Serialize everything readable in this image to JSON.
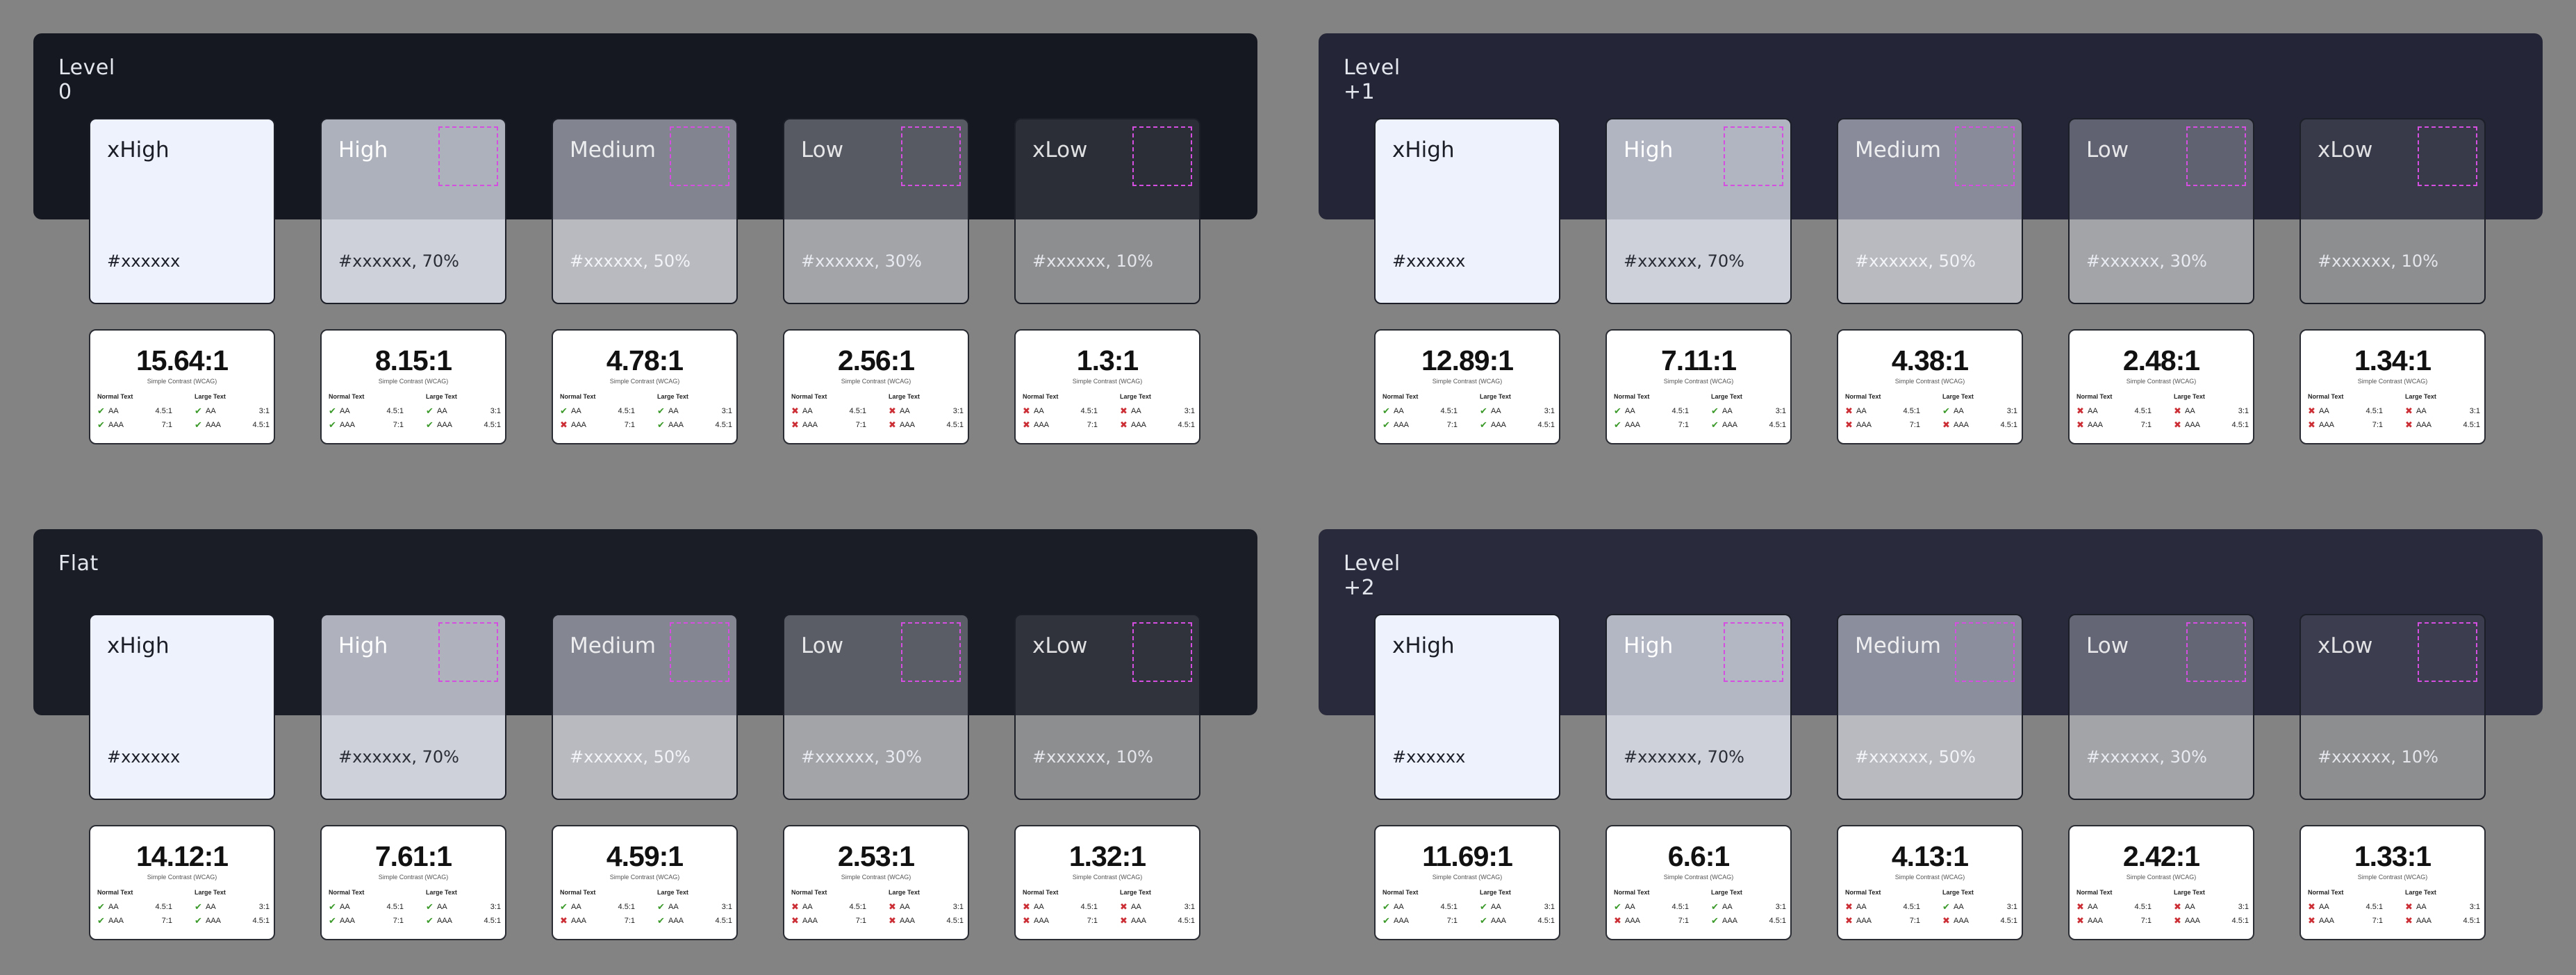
{
  "groups": [
    {
      "title": "Level 0",
      "band_color": "#161821",
      "swatches": [
        {
          "label": "xHigh",
          "value": "#xxxxxx"
        },
        {
          "label": "High",
          "value": "#xxxxxx, 70%"
        },
        {
          "label": "Medium",
          "value": "#xxxxxx, 50%"
        },
        {
          "label": "Low",
          "value": "#xxxxxx, 30%"
        },
        {
          "label": "xLow",
          "value": "#xxxxxx, 10%"
        }
      ],
      "cards": [
        {
          "ratio": "15.64:1",
          "normal": [
            "pass",
            "pass"
          ],
          "large": [
            "pass",
            "pass"
          ]
        },
        {
          "ratio": "8.15:1",
          "normal": [
            "pass",
            "pass"
          ],
          "large": [
            "pass",
            "pass"
          ]
        },
        {
          "ratio": "4.78:1",
          "normal": [
            "pass",
            "fail"
          ],
          "large": [
            "pass",
            "pass"
          ]
        },
        {
          "ratio": "2.56:1",
          "normal": [
            "fail",
            "fail"
          ],
          "large": [
            "fail",
            "fail"
          ]
        },
        {
          "ratio": "1.3:1",
          "normal": [
            "fail",
            "fail"
          ],
          "large": [
            "fail",
            "fail"
          ]
        }
      ]
    },
    {
      "title": "Level +1",
      "band_color": "#242536",
      "swatches": [
        {
          "label": "xHigh",
          "value": "#xxxxxx"
        },
        {
          "label": "High",
          "value": "#xxxxxx, 70%"
        },
        {
          "label": "Medium",
          "value": "#xxxxxx, 50%"
        },
        {
          "label": "Low",
          "value": "#xxxxxx, 30%"
        },
        {
          "label": "xLow",
          "value": "#xxxxxx, 10%"
        }
      ],
      "cards": [
        {
          "ratio": "12.89:1",
          "normal": [
            "pass",
            "pass"
          ],
          "large": [
            "pass",
            "pass"
          ]
        },
        {
          "ratio": "7.11:1",
          "normal": [
            "pass",
            "pass"
          ],
          "large": [
            "pass",
            "pass"
          ]
        },
        {
          "ratio": "4.38:1",
          "normal": [
            "fail",
            "fail"
          ],
          "large": [
            "pass",
            "fail"
          ]
        },
        {
          "ratio": "2.48:1",
          "normal": [
            "fail",
            "fail"
          ],
          "large": [
            "fail",
            "fail"
          ]
        },
        {
          "ratio": "1.34:1",
          "normal": [
            "fail",
            "fail"
          ],
          "large": [
            "fail",
            "fail"
          ]
        }
      ]
    },
    {
      "title": "Flat",
      "band_color": "#1b1d26",
      "swatches": [
        {
          "label": "xHigh",
          "value": "#xxxxxx"
        },
        {
          "label": "High",
          "value": "#xxxxxx, 70%"
        },
        {
          "label": "Medium",
          "value": "#xxxxxx, 50%"
        },
        {
          "label": "Low",
          "value": "#xxxxxx, 30%"
        },
        {
          "label": "xLow",
          "value": "#xxxxxx, 10%"
        }
      ],
      "cards": [
        {
          "ratio": "14.12:1",
          "normal": [
            "pass",
            "pass"
          ],
          "large": [
            "pass",
            "pass"
          ]
        },
        {
          "ratio": "7.61:1",
          "normal": [
            "pass",
            "pass"
          ],
          "large": [
            "pass",
            "pass"
          ]
        },
        {
          "ratio": "4.59:1",
          "normal": [
            "pass",
            "fail"
          ],
          "large": [
            "pass",
            "pass"
          ]
        },
        {
          "ratio": "2.53:1",
          "normal": [
            "fail",
            "fail"
          ],
          "large": [
            "fail",
            "fail"
          ]
        },
        {
          "ratio": "1.32:1",
          "normal": [
            "fail",
            "fail"
          ],
          "large": [
            "fail",
            "fail"
          ]
        }
      ]
    },
    {
      "title": "Level +2",
      "band_color": "#292a3b",
      "swatches": [
        {
          "label": "xHigh",
          "value": "#xxxxxx"
        },
        {
          "label": "High",
          "value": "#xxxxxx, 70%"
        },
        {
          "label": "Medium",
          "value": "#xxxxxx, 50%"
        },
        {
          "label": "Low",
          "value": "#xxxxxx, 30%"
        },
        {
          "label": "xLow",
          "value": "#xxxxxx, 10%"
        }
      ],
      "cards": [
        {
          "ratio": "11.69:1",
          "normal": [
            "pass",
            "pass"
          ],
          "large": [
            "pass",
            "pass"
          ]
        },
        {
          "ratio": "6.6:1",
          "normal": [
            "pass",
            "fail"
          ],
          "large": [
            "pass",
            "pass"
          ]
        },
        {
          "ratio": "4.13:1",
          "normal": [
            "fail",
            "fail"
          ],
          "large": [
            "pass",
            "fail"
          ]
        },
        {
          "ratio": "2.42:1",
          "normal": [
            "fail",
            "fail"
          ],
          "large": [
            "fail",
            "fail"
          ]
        },
        {
          "ratio": "1.33:1",
          "normal": [
            "fail",
            "fail"
          ],
          "large": [
            "fail",
            "fail"
          ]
        }
      ]
    }
  ],
  "card_labels": {
    "subtitle": "Simple Contrast (WCAG)",
    "normal_text": "Normal Text",
    "large_text": "Large Text",
    "aa": "AA",
    "aaa": "AAA",
    "normal_aa_req": "4.5:1",
    "normal_aaa_req": "7:1",
    "large_aa_req": "3:1",
    "large_aaa_req": "4.5:1"
  },
  "swatch_alphas": [
    1.0,
    0.7,
    0.5,
    0.3,
    0.1
  ],
  "swatch_color": "#eef2fd",
  "dashed_outline_color": "#d44ee0",
  "pass_color": "#3c9a2b",
  "fail_color": "#cc2e35",
  "background_color": "#838383"
}
